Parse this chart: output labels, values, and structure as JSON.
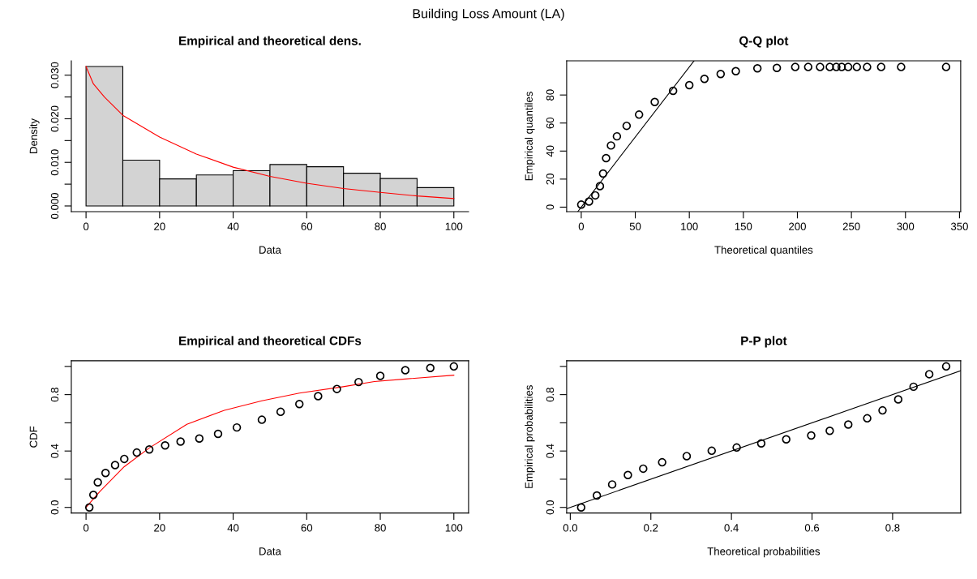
{
  "chart_data": [
    {
      "type": "histogram",
      "title": "Empirical and theoretical dens.",
      "xlabel": "Data",
      "ylabel": "Density",
      "annotations": [
        "Building Loss Amount (LA)"
      ],
      "bins": [
        0,
        10,
        20,
        30,
        40,
        50,
        60,
        70,
        80,
        90,
        100
      ],
      "values": [
        0.032,
        0.0105,
        0.0062,
        0.0071,
        0.0081,
        0.0095,
        0.009,
        0.0075,
        0.0063,
        0.0042
      ],
      "color": "#d3d3d3",
      "series": [
        {
          "type": "line",
          "color": "#ff0000",
          "x": [
            0,
            2,
            5,
            10,
            20,
            30,
            40,
            50,
            60,
            70,
            80,
            90,
            100
          ],
          "values": [
            0.032,
            0.028,
            0.025,
            0.0208,
            0.0158,
            0.0119,
            0.0089,
            0.0068,
            0.0052,
            0.004,
            0.0031,
            0.0023,
            0.0017
          ]
        }
      ],
      "xlim": [
        -4,
        104
      ],
      "ylim": [
        -0.0013,
        0.0333
      ],
      "xticks": [
        0,
        20,
        40,
        60,
        80,
        100
      ],
      "yticks": [
        {
          "value": 0,
          "label": "0.000"
        },
        {
          "value": 0.005,
          "label": null
        },
        {
          "value": 0.01,
          "label": "0.010"
        },
        {
          "value": 0.015,
          "label": null
        },
        {
          "value": 0.02,
          "label": "0.020"
        },
        {
          "value": 0.025,
          "label": null
        },
        {
          "value": 0.03,
          "label": "0.030"
        }
      ]
    },
    {
      "type": "scatter",
      "title": "Q-Q plot",
      "xlabel": "Theoretical quantiles",
      "ylabel": "Empirical quantiles",
      "series": [
        {
          "type": "scatter",
          "marker": "circle",
          "color": "#000000",
          "x": [
            0,
            7.2,
            13,
            17.3,
            20.2,
            23,
            27.5,
            33,
            42,
            53.5,
            68,
            85,
            100,
            114,
            129,
            143,
            163,
            181,
            198,
            210,
            221,
            230,
            236,
            241,
            247,
            255,
            264.5,
            277.5,
            296,
            337.6
          ],
          "values": [
            1.8,
            4,
            8.4,
            15,
            24,
            35,
            44,
            50.5,
            58,
            66,
            75,
            83,
            87,
            91.5,
            95,
            97,
            99,
            99.3,
            100,
            100,
            100,
            100,
            100,
            100,
            100,
            100,
            100,
            100,
            100,
            100
          ]
        },
        {
          "type": "line",
          "color": "#000000",
          "x": [
            -3.2,
            104.4
          ],
          "values": [
            -3.2,
            104.4
          ]
        }
      ],
      "xlim": [
        -13.5,
        351.1
      ],
      "ylim": [
        -3.2,
        104.4
      ],
      "xticks": [
        0,
        50,
        100,
        150,
        200,
        250,
        300,
        350
      ],
      "yticks": [
        0,
        20,
        40,
        60,
        80
      ]
    },
    {
      "type": "scatter",
      "title": "Empirical and theoretical CDFs",
      "xlabel": "Data",
      "ylabel": "CDF",
      "series": [
        {
          "type": "scatter",
          "marker": "circle",
          "color": "#000000",
          "x": [
            0.9,
            2,
            3.2,
            5.3,
            7.9,
            10.4,
            13.8,
            17.2,
            21.5,
            25.7,
            30.8,
            35.9,
            41,
            47.8,
            52.9,
            58,
            63.1,
            68.2,
            74.1,
            80,
            86.8,
            93.6,
            100
          ],
          "values": [
            0,
            0.089,
            0.178,
            0.244,
            0.3,
            0.344,
            0.389,
            0.411,
            0.44,
            0.467,
            0.489,
            0.522,
            0.567,
            0.622,
            0.678,
            0.733,
            0.789,
            0.84,
            0.889,
            0.933,
            0.973,
            0.989,
            1
          ]
        },
        {
          "type": "line",
          "color": "#ff0000",
          "x": [
            0,
            3.7,
            10.4,
            17.2,
            27.4,
            37.6,
            47.8,
            58,
            69.9,
            78.4,
            86.8,
            100
          ],
          "values": [
            0,
            0.111,
            0.289,
            0.422,
            0.589,
            0.689,
            0.756,
            0.811,
            0.856,
            0.893,
            0.911,
            0.938
          ]
        }
      ],
      "xlim": [
        -4,
        104
      ],
      "ylim": [
        -0.04,
        1.04
      ],
      "xticks": [
        0,
        20,
        40,
        60,
        80,
        100
      ],
      "yticks": [
        {
          "value": 0,
          "label": "0.0"
        },
        {
          "value": 0.2,
          "label": null
        },
        {
          "value": 0.4,
          "label": "0.4"
        },
        {
          "value": 0.6,
          "label": null
        },
        {
          "value": 0.8,
          "label": "0.8"
        },
        {
          "value": 1.0,
          "label": null
        }
      ]
    },
    {
      "type": "scatter",
      "title": "P-P plot",
      "xlabel": "Theoretical probabilities",
      "ylabel": "Empirical probabilities",
      "series": [
        {
          "type": "scatter",
          "marker": "circle",
          "color": "#000000",
          "x": [
            0.027,
            0.066,
            0.104,
            0.143,
            0.181,
            0.228,
            0.289,
            0.351,
            0.413,
            0.474,
            0.536,
            0.598,
            0.644,
            0.69,
            0.737,
            0.775,
            0.814,
            0.852,
            0.891,
            0.933
          ],
          "values": [
            0,
            0.085,
            0.163,
            0.23,
            0.275,
            0.32,
            0.364,
            0.402,
            0.425,
            0.454,
            0.483,
            0.51,
            0.543,
            0.588,
            0.632,
            0.688,
            0.766,
            0.856,
            0.945,
            1
          ]
        },
        {
          "type": "line",
          "color": "#000000",
          "x": [
            -0.009,
            0.969
          ],
          "values": [
            -0.009,
            0.969
          ]
        }
      ],
      "xlim": [
        -0.009,
        0.969
      ],
      "ylim": [
        -0.04,
        1.04
      ],
      "xticks": [
        {
          "value": 0,
          "label": "0.0"
        },
        {
          "value": 0.2,
          "label": "0.2"
        },
        {
          "value": 0.4,
          "label": "0.4"
        },
        {
          "value": 0.6,
          "label": "0.6"
        },
        {
          "value": 0.8,
          "label": "0.8"
        }
      ],
      "yticks": [
        {
          "value": 0,
          "label": "0.0"
        },
        {
          "value": 0.2,
          "label": null
        },
        {
          "value": 0.4,
          "label": "0.4"
        },
        {
          "value": 0.6,
          "label": null
        },
        {
          "value": 0.8,
          "label": "0.8"
        },
        {
          "value": 1.0,
          "label": null
        }
      ]
    }
  ]
}
